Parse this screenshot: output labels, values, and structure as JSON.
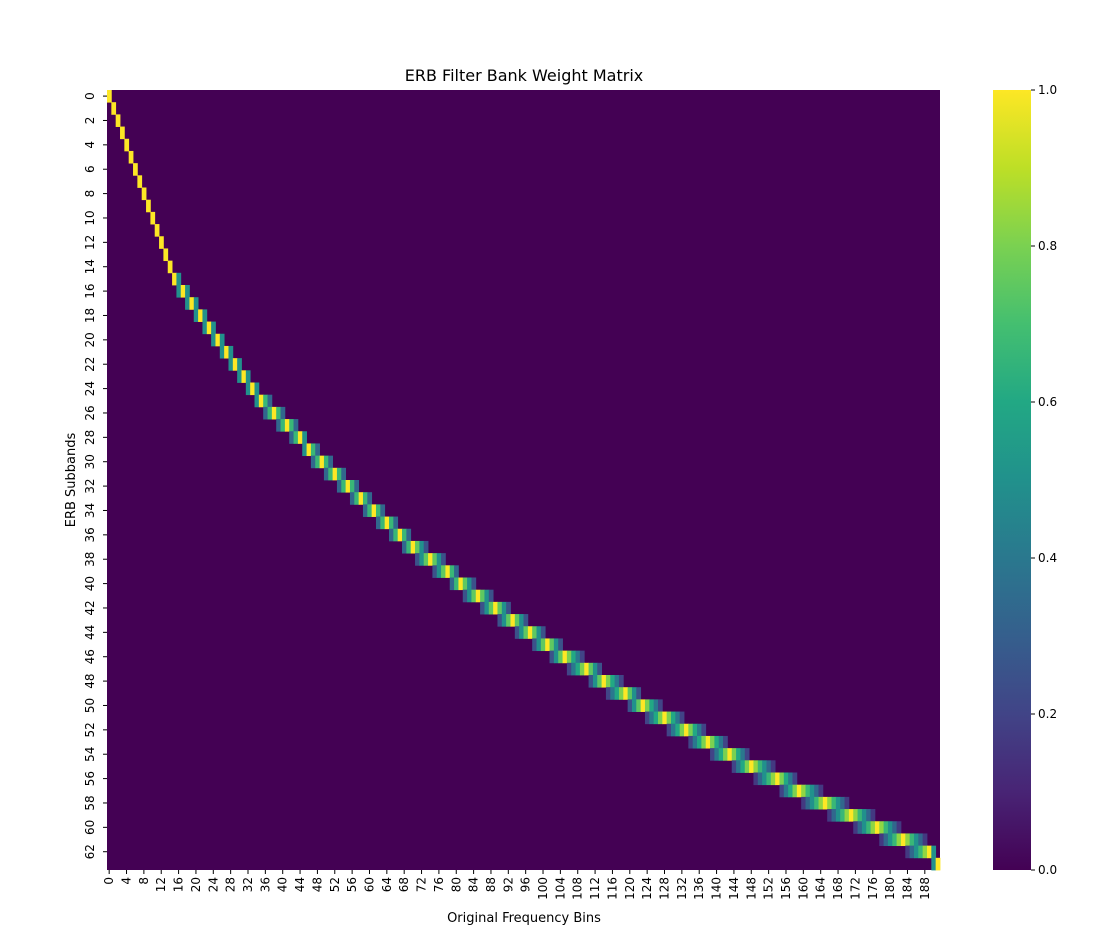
{
  "chart_data": {
    "type": "heatmap",
    "title": "ERB Filter Bank Weight Matrix",
    "xlabel": "Original Frequency Bins",
    "ylabel": "ERB Subbands",
    "n_rows": 64,
    "n_cols": 192,
    "row_centers": [
      0,
      1,
      2,
      3,
      4,
      5,
      6,
      7,
      8,
      9,
      10,
      11,
      12,
      13,
      14,
      15,
      17,
      19,
      21,
      23,
      25,
      27,
      29,
      31,
      33,
      35,
      38,
      41,
      44,
      46,
      49,
      52,
      55,
      58,
      61,
      64,
      67,
      70,
      74,
      78,
      81,
      85,
      89,
      93,
      97,
      101,
      105,
      110,
      114,
      119,
      123,
      128,
      133,
      138,
      143,
      148,
      154,
      159,
      165,
      171,
      177,
      183,
      189,
      191
    ],
    "x_ticks": [
      0,
      4,
      8,
      12,
      16,
      20,
      24,
      28,
      32,
      36,
      40,
      44,
      48,
      52,
      56,
      60,
      64,
      68,
      72,
      76,
      80,
      84,
      88,
      92,
      96,
      100,
      104,
      108,
      112,
      116,
      120,
      124,
      128,
      132,
      136,
      140,
      144,
      148,
      152,
      156,
      160,
      164,
      168,
      172,
      176,
      180,
      184,
      188
    ],
    "y_ticks": [
      0,
      2,
      4,
      6,
      8,
      10,
      12,
      14,
      16,
      18,
      20,
      22,
      24,
      26,
      28,
      30,
      32,
      34,
      36,
      38,
      40,
      42,
      44,
      46,
      48,
      50,
      52,
      54,
      56,
      58,
      60,
      62
    ],
    "colorbar": {
      "min": 0.0,
      "max": 1.0,
      "ticks": [
        "0.0",
        "0.2",
        "0.4",
        "0.6",
        "0.8",
        "1.0"
      ]
    },
    "colormap": "viridis",
    "grid": false
  }
}
